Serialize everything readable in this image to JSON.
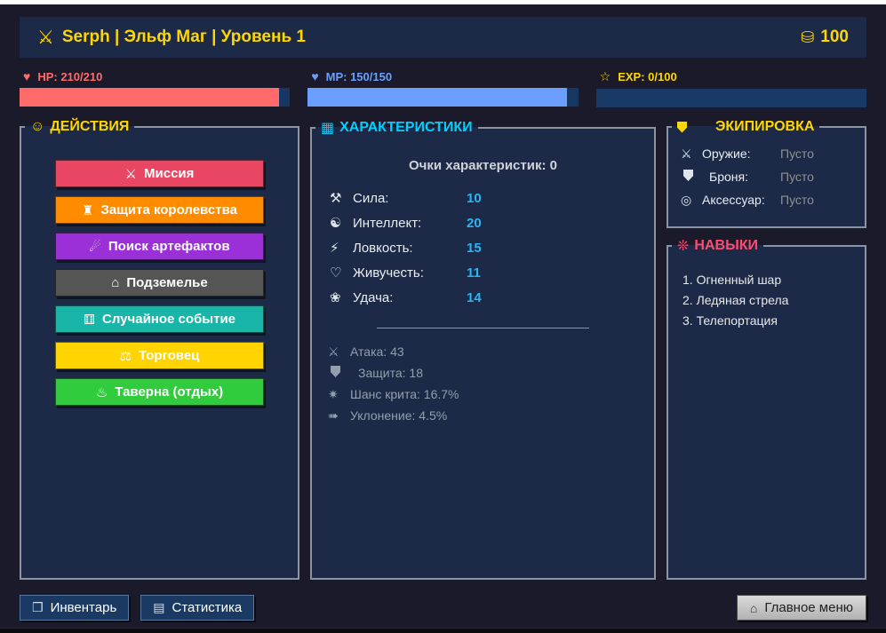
{
  "theme": {
    "page_bg": "#1a1a2b",
    "panel_bg": "#1c2a48",
    "panel_border": "#8d93a0",
    "gold": "#ffd700",
    "cyan": "#00cfff",
    "pink": "#ff4b6e",
    "stat_value_cyan": "#29b6f6",
    "muted_gray": "#949eac",
    "empty_gray": "#909090"
  },
  "header": {
    "icon": "⚔",
    "title": "Serph | Эльф Маг | Уровень 1",
    "gold_icon": "⛁",
    "gold_amount": "100"
  },
  "bars": [
    {
      "name": "HP",
      "icon": "♥",
      "label": "HP: 210/210",
      "color": "#ff6b6b",
      "fill_color": "#ff6b6b",
      "fill_pct": 96,
      "track_color": "#173763"
    },
    {
      "name": "MP",
      "icon": "♥",
      "label": "MP: 150/150",
      "color": "#6b9fff",
      "fill_color": "#6b9fff",
      "fill_pct": 96,
      "track_color": "#173763"
    },
    {
      "name": "EXP",
      "icon": "☆",
      "label": "EXP: 0/100",
      "color": "#ffd700",
      "fill_color": "#1a3a66",
      "fill_pct": 0,
      "track_color": "#1a3a66"
    }
  ],
  "actions": {
    "icon": "☺",
    "title": "ДЕЙСТВИЯ",
    "buttons": [
      {
        "icon": "⚔",
        "label": "Миссия",
        "color": "#e94663",
        "icon_name": "crossed-swords"
      },
      {
        "icon": "♜",
        "label": "Защита королевства",
        "color": "#ff8c00",
        "icon_name": "castle"
      },
      {
        "icon": "☄",
        "label": "Поиск артефактов",
        "color": "#9b30d9",
        "icon_name": "crystal-ball"
      },
      {
        "icon": "⌂",
        "label": "Подземелье",
        "color": "#555555",
        "icon_name": "dungeon-house"
      },
      {
        "icon": "⚅",
        "label": "Случайное событие",
        "color": "#18b5a8",
        "icon_name": "dice"
      },
      {
        "icon": "⚖",
        "label": "Торговец",
        "color": "#ffd400",
        "icon_name": "merchant-cart"
      },
      {
        "icon": "♨",
        "label": "Таверна (отдых)",
        "color": "#30cc3e",
        "icon_name": "tavern"
      }
    ]
  },
  "stats": {
    "icon": "▦",
    "title": "ХАРАКТЕРИСТИКИ",
    "points_label": "Очки характеристик: 0",
    "primary": [
      {
        "icon": "⚒",
        "label": "Сила:",
        "value": "10",
        "icon_name": "strength-muscle"
      },
      {
        "icon": "☯",
        "label": "Интеллект:",
        "value": "20",
        "icon_name": "intellect-brain"
      },
      {
        "icon": "⚡",
        "label": "Ловкость:",
        "value": "15",
        "icon_name": "agility-runner"
      },
      {
        "icon": "♡",
        "label": "Живучесть:",
        "value": "11",
        "icon_name": "vitality-heart"
      },
      {
        "icon": "❀",
        "label": "Удача:",
        "value": "14",
        "icon_name": "luck-clover"
      }
    ],
    "derived": [
      {
        "icon": "⚔",
        "text": "Атака: 43",
        "icon_name": "attack-swords"
      },
      {
        "icon": "",
        "text": "Защита: 18",
        "icon_name": "defense-shield"
      },
      {
        "icon": "✷",
        "text": "Шанс крита: 16.7%",
        "icon_name": "crit-burst"
      },
      {
        "icon": "➠",
        "text": "Уклонение: 4.5%",
        "icon_name": "dodge-dash"
      }
    ]
  },
  "equipment": {
    "title": "ЭКИПИРОВКА",
    "slots": [
      {
        "icon": "⚔",
        "label": "Оружие:",
        "value": "Пусто",
        "icon_name": "weapon-swords"
      },
      {
        "icon": "",
        "label": "Броня:",
        "value": "Пусто",
        "icon_name": "armor-shield"
      },
      {
        "icon": "◎",
        "label": "Аксессуар:",
        "value": "Пусто",
        "icon_name": "accessory-ring"
      }
    ]
  },
  "skills": {
    "icon": "❊",
    "title": "НАВЫКИ",
    "items": [
      "1. Огненный шар",
      "2. Ледяная стрела",
      "3. Телепортация"
    ]
  },
  "footer": {
    "inventory_icon": "❒",
    "inventory_label": "Инвентарь",
    "stats_icon": "▤",
    "stats_label": "Статистика",
    "menu_icon": "⌂",
    "menu_label": "Главное меню"
  }
}
